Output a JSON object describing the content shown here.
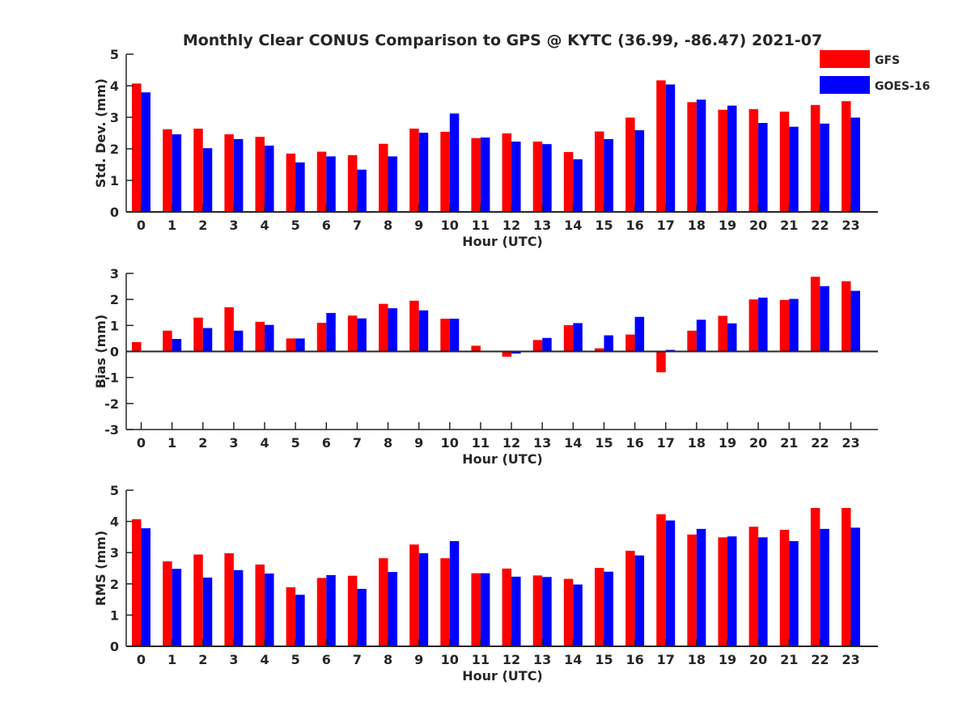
{
  "title": "Monthly Clear CONUS Comparison to GPS @ KYTC (36.99, -86.47) 2021-07",
  "legend": [
    {
      "name": "GFS",
      "color": "#ff0000"
    },
    {
      "name": "GOES-16",
      "color": "#0000ff"
    }
  ],
  "chart_data": [
    {
      "type": "bar",
      "xlabel": "Hour (UTC)",
      "ylabel": "Std. Dev. (mm)",
      "ylim": [
        0,
        5
      ],
      "yticks": [
        0,
        1,
        2,
        3,
        4,
        5
      ],
      "categories": [
        "0",
        "1",
        "2",
        "3",
        "4",
        "5",
        "6",
        "7",
        "8",
        "9",
        "10",
        "11",
        "12",
        "13",
        "14",
        "15",
        "16",
        "17",
        "18",
        "19",
        "20",
        "21",
        "22",
        "23"
      ],
      "series": [
        {
          "name": "GFS",
          "color": "#ff0000",
          "values": [
            4.07,
            2.62,
            2.64,
            2.46,
            2.38,
            1.85,
            1.91,
            1.8,
            2.16,
            2.64,
            2.54,
            2.34,
            2.49,
            2.23,
            1.9,
            2.55,
            2.99,
            4.17,
            3.48,
            3.24,
            3.26,
            3.18,
            3.39,
            3.51
          ]
        },
        {
          "name": "GOES-16",
          "color": "#0000ff",
          "values": [
            3.79,
            2.46,
            2.02,
            2.31,
            2.1,
            1.57,
            1.76,
            1.34,
            1.76,
            2.51,
            3.12,
            2.36,
            2.23,
            2.15,
            1.67,
            2.31,
            2.59,
            4.04,
            3.56,
            3.37,
            2.82,
            2.7,
            2.8,
            2.99
          ]
        }
      ]
    },
    {
      "type": "bar",
      "xlabel": "Hour (UTC)",
      "ylabel": "Bias (mm)",
      "ylim": [
        -3,
        3
      ],
      "yticks": [
        -3,
        -2,
        -1,
        0,
        1,
        2,
        3
      ],
      "categories": [
        "0",
        "1",
        "2",
        "3",
        "4",
        "5",
        "6",
        "7",
        "8",
        "9",
        "10",
        "11",
        "12",
        "13",
        "14",
        "15",
        "16",
        "17",
        "18",
        "19",
        "20",
        "21",
        "22",
        "23"
      ],
      "series": [
        {
          "name": "GFS",
          "color": "#ff0000",
          "values": [
            0.36,
            0.8,
            1.3,
            1.7,
            1.14,
            0.5,
            1.1,
            1.38,
            1.83,
            1.95,
            1.26,
            0.22,
            -0.2,
            0.44,
            1.01,
            0.12,
            0.65,
            -0.8,
            0.8,
            1.37,
            2.0,
            1.98,
            2.87,
            2.7
          ]
        },
        {
          "name": "GOES-16",
          "color": "#0000ff",
          "values": [
            -0.03,
            0.48,
            0.9,
            0.8,
            1.02,
            0.5,
            1.48,
            1.27,
            1.66,
            1.58,
            1.26,
            0.0,
            -0.08,
            0.52,
            1.09,
            0.62,
            1.33,
            0.06,
            1.22,
            1.08,
            2.07,
            2.02,
            2.51,
            2.33
          ]
        }
      ]
    },
    {
      "type": "bar",
      "xlabel": "Hour (UTC)",
      "ylabel": "RMS (mm)",
      "ylim": [
        0,
        5
      ],
      "yticks": [
        0,
        1,
        2,
        3,
        4,
        5
      ],
      "categories": [
        "0",
        "1",
        "2",
        "3",
        "4",
        "5",
        "6",
        "7",
        "8",
        "9",
        "10",
        "11",
        "12",
        "13",
        "14",
        "15",
        "16",
        "17",
        "18",
        "19",
        "20",
        "21",
        "22",
        "23"
      ],
      "series": [
        {
          "name": "GFS",
          "color": "#ff0000",
          "values": [
            4.07,
            2.72,
            2.94,
            2.98,
            2.62,
            1.89,
            2.19,
            2.26,
            2.82,
            3.26,
            2.82,
            2.34,
            2.49,
            2.27,
            2.16,
            2.51,
            3.06,
            4.23,
            3.58,
            3.49,
            3.83,
            3.73,
            4.43,
            4.43
          ]
        },
        {
          "name": "GOES-16",
          "color": "#0000ff",
          "values": [
            3.78,
            2.48,
            2.2,
            2.44,
            2.33,
            1.65,
            2.28,
            1.84,
            2.38,
            2.98,
            3.37,
            2.34,
            2.23,
            2.22,
            1.98,
            2.39,
            2.91,
            4.03,
            3.76,
            3.52,
            3.49,
            3.37,
            3.76,
            3.8
          ]
        }
      ]
    }
  ]
}
